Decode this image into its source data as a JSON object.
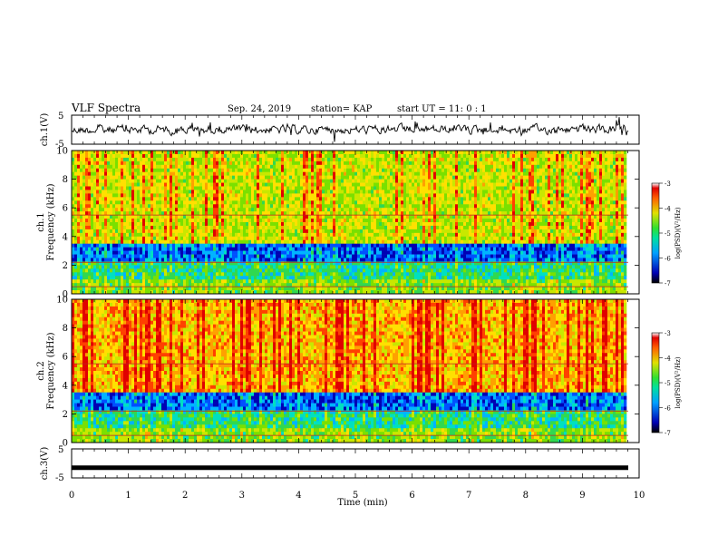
{
  "header": {
    "title": "VLF Spectra",
    "date": "Sep. 24, 2019",
    "station": "station= KAP",
    "start": "start  UT =   11: 0  : 1"
  },
  "chart_data": [
    {
      "type": "line",
      "panel": "ch1-waveform",
      "ylabel": "ch.1(V)",
      "ylim": [
        -5,
        5
      ],
      "yticks": [
        "5",
        "-5"
      ],
      "xlim": [
        0,
        10
      ],
      "color": "#000000",
      "description_values": "noisy waveform approximately between -3 and 3 V over 0 to 9.8 min"
    },
    {
      "type": "heatmap",
      "panel": "ch1-spectrogram",
      "ylabel": "ch.1\nFrequency (kHz)",
      "ylim": [
        0,
        10
      ],
      "yticks": [
        "0",
        "2",
        "4",
        "6",
        "8",
        "10"
      ],
      "xlim": [
        0,
        10
      ],
      "colorbar": {
        "label": "log(PSD)(V²/Hz)",
        "range": [
          -7,
          -3
        ],
        "ticks": [
          "-3",
          "-4",
          "-5",
          "-6",
          "-7"
        ]
      }
    },
    {
      "type": "heatmap",
      "panel": "ch2-spectrogram",
      "ylabel": "ch.2\nFrequency (kHz)",
      "ylim": [
        0,
        10
      ],
      "yticks": [
        "0",
        "2",
        "4",
        "6",
        "8",
        "10"
      ],
      "xlim": [
        0,
        10
      ],
      "colorbar": {
        "label": "log(PSD)(V²/Hz)",
        "range": [
          -7,
          -3
        ],
        "ticks": [
          "-3",
          "-4",
          "-5",
          "-6",
          "-7"
        ]
      }
    },
    {
      "type": "line",
      "panel": "ch3-waveform",
      "ylabel": "ch.3(V)",
      "ylim": [
        -5,
        5
      ],
      "yticks": [
        "5",
        "-5"
      ],
      "xlim": [
        0,
        10
      ],
      "value": -1.5,
      "color": "#000000"
    }
  ],
  "xaxis": {
    "label": "Time (min)",
    "ticks": [
      "0",
      "1",
      "2",
      "3",
      "4",
      "5",
      "6",
      "7",
      "8",
      "9",
      "10"
    ]
  },
  "labels": {
    "ch1": "ch.1(V)",
    "ch1spec": "ch.1",
    "freq": "Frequency (kHz)",
    "ch2spec": "ch.2",
    "ch3": "ch.3(V)",
    "cb": "log(PSD)(V²/Hz)"
  },
  "colors": {
    "low": "#0000c8",
    "mid": "#2ad000",
    "high": "#ffd000",
    "peak": "#e80000"
  }
}
